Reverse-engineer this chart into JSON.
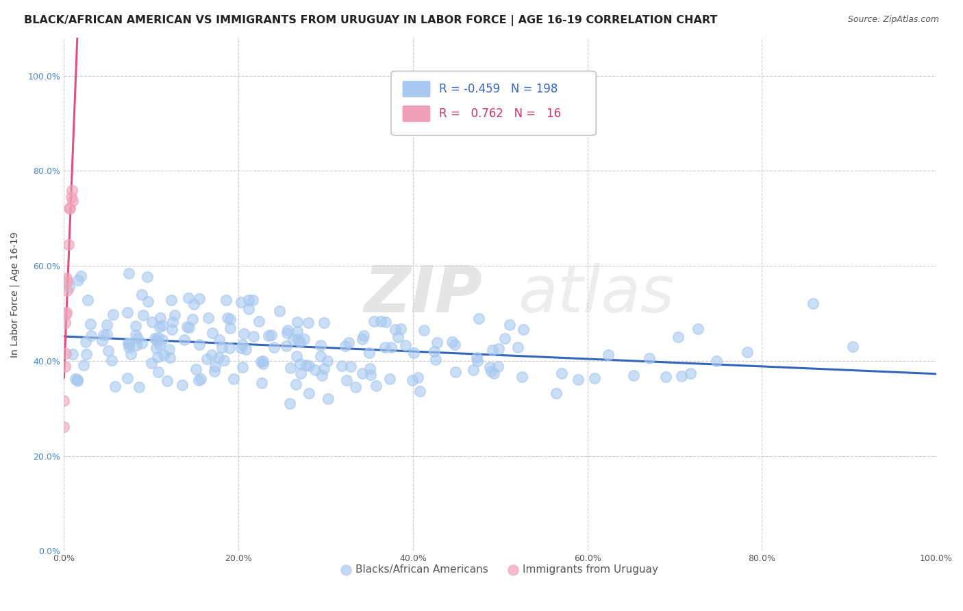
{
  "title": "BLACK/AFRICAN AMERICAN VS IMMIGRANTS FROM URUGUAY IN LABOR FORCE | AGE 16-19 CORRELATION CHART",
  "source": "Source: ZipAtlas.com",
  "ylabel": "In Labor Force | Age 16-19",
  "xlim": [
    0.0,
    1.0
  ],
  "ylim": [
    0.0,
    1.08
  ],
  "xticks": [
    0.0,
    0.2,
    0.4,
    0.6,
    0.8,
    1.0
  ],
  "yticks": [
    0.0,
    0.2,
    0.4,
    0.6,
    0.8,
    1.0
  ],
  "blue_color": "#a8c8f0",
  "pink_color": "#f0a0b8",
  "blue_line_color": "#3366bb",
  "pink_line_color": "#e0507a",
  "R_blue": -0.459,
  "N_blue": 198,
  "R_pink": 0.762,
  "N_pink": 16,
  "watermark_zip": "ZIP",
  "watermark_atlas": "atlas",
  "watermark_color": "#d8d8d8",
  "title_fontsize": 11.5,
  "source_fontsize": 9,
  "axis_label_fontsize": 10,
  "tick_fontsize": 9,
  "legend_fontsize": 12,
  "yticklabel_color": "#4488cc",
  "xticklabel_color": "#555555"
}
